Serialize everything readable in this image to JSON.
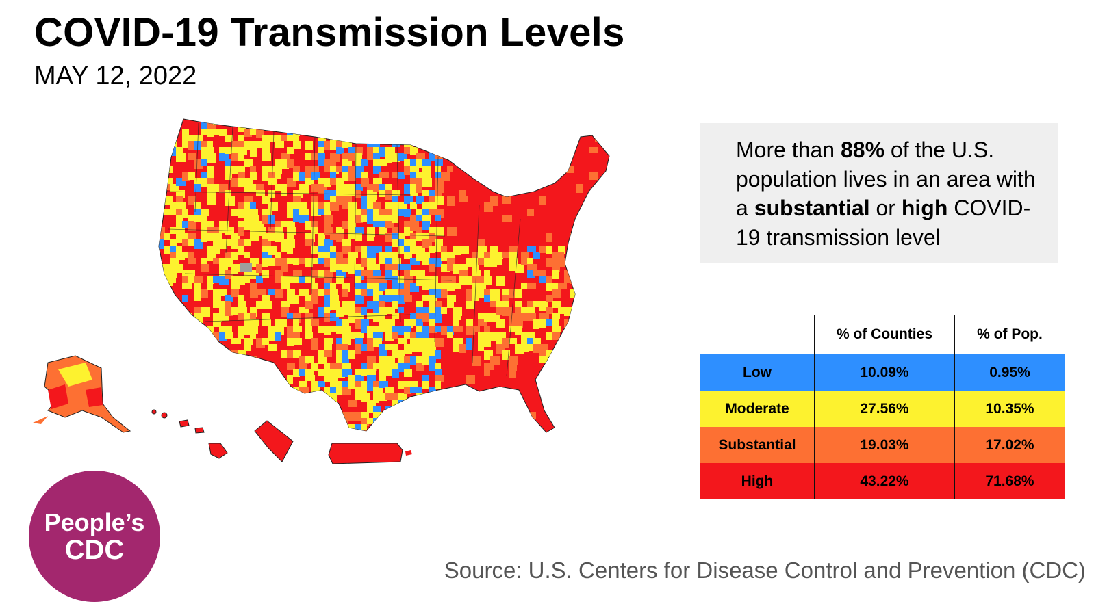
{
  "header": {
    "title": "COVID-19 Transmission Levels",
    "date": "MAY 12, 2022"
  },
  "callout": {
    "prefix": "More than ",
    "pct": "88%",
    "mid1": " of the U.S. population lives in an area with a ",
    "level_a": "substantial",
    "mid2": " or ",
    "level_b": "high",
    "suffix": " COVID-19 transmission level"
  },
  "table": {
    "headers": [
      "",
      "% of Counties",
      "% of Pop."
    ],
    "rows": [
      {
        "level": "Low",
        "counties": "10.09%",
        "population": "0.95%",
        "color": "#2e8fff"
      },
      {
        "level": "Moderate",
        "counties": "27.56%",
        "population": "10.35%",
        "color": "#fdf22f"
      },
      {
        "level": "Substantial",
        "counties": "19.03%",
        "population": "17.02%",
        "color": "#fd7033"
      },
      {
        "level": "High",
        "counties": "43.22%",
        "population": "71.68%",
        "color": "#f3171c"
      }
    ]
  },
  "map": {
    "regions": [
      "contiguous-us",
      "alaska",
      "hawaii",
      "guam",
      "puerto-rico"
    ],
    "legend_colors": {
      "low": "#2e8fff",
      "moderate": "#fdf22f",
      "substantial": "#fd7033",
      "high": "#f3171c",
      "no_data": "#9e9e9e"
    }
  },
  "logo": {
    "line1": "People’s",
    "line2": "CDC",
    "color": "#a3276e"
  },
  "source": "Source: U.S. Centers for Disease Control and Prevention (CDC)"
}
